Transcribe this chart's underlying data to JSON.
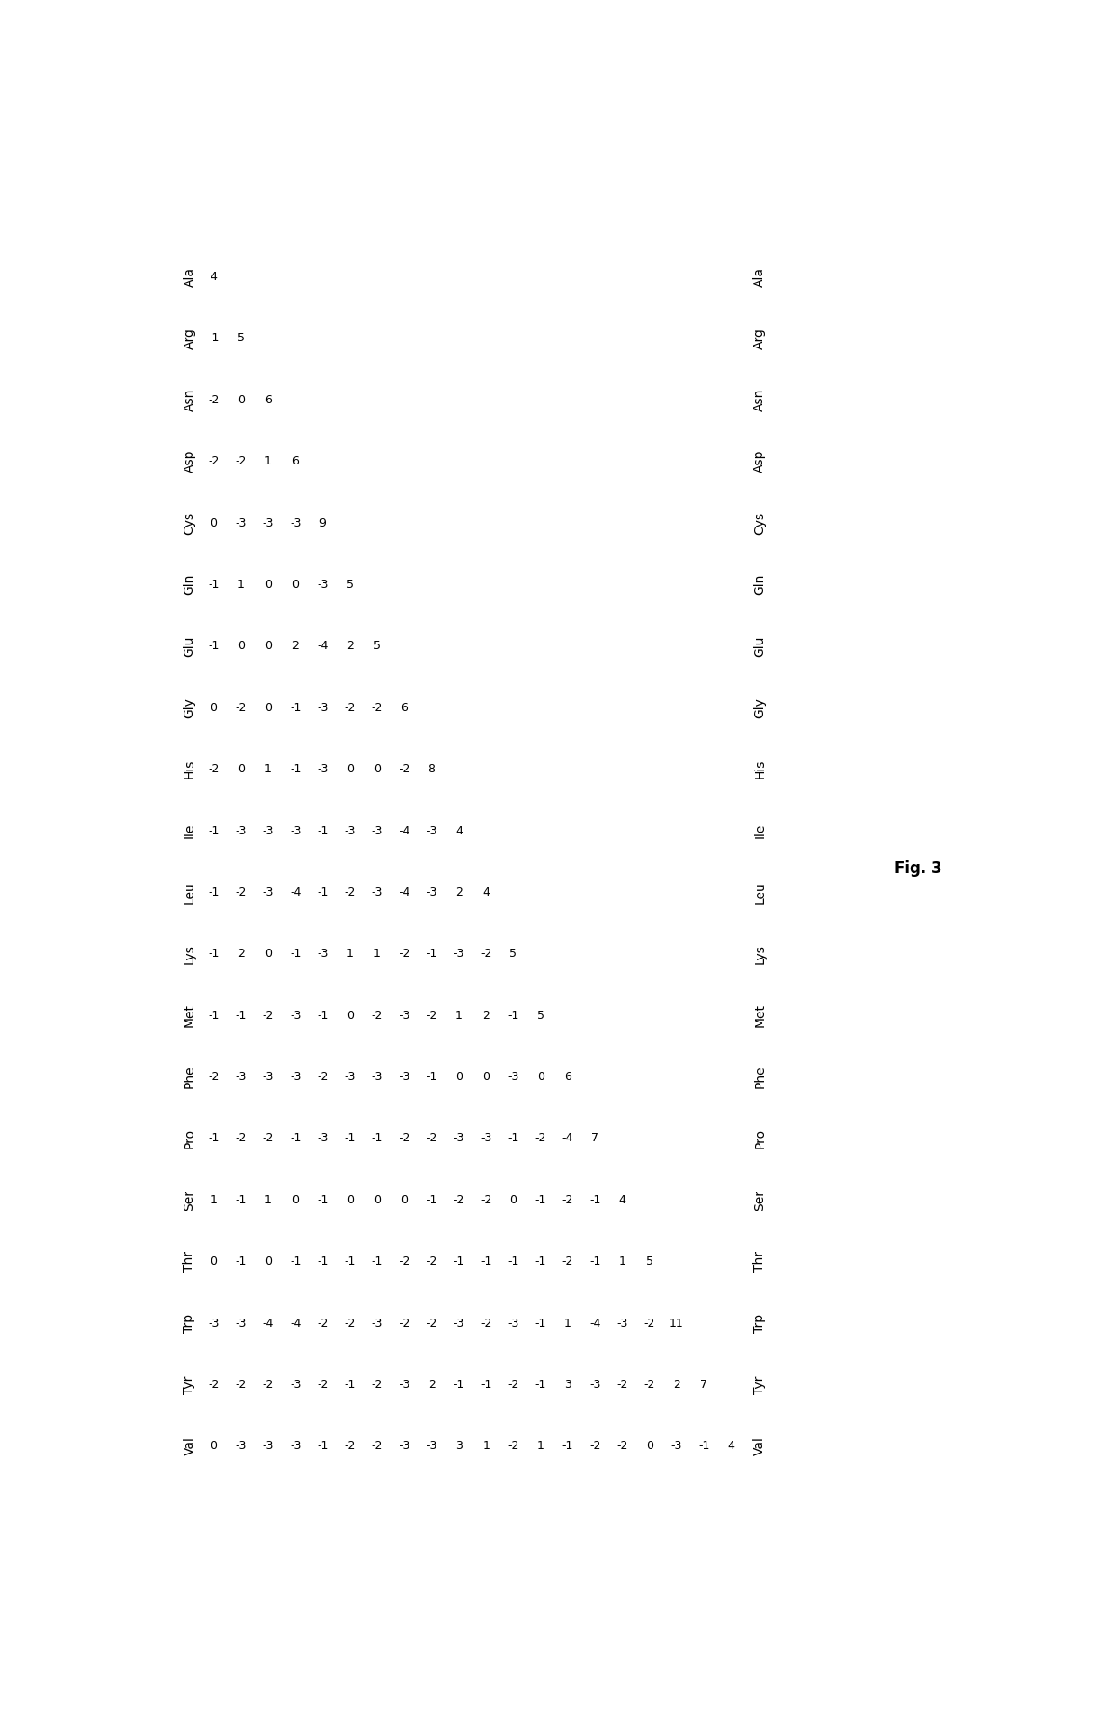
{
  "title": "Fig. 3",
  "amino_acids": [
    "Ala",
    "Arg",
    "Asn",
    "Asp",
    "Cys",
    "Gln",
    "Glu",
    "Gly",
    "His",
    "Ile",
    "Leu",
    "Lys",
    "Met",
    "Phe",
    "Pro",
    "Ser",
    "Thr",
    "Trp",
    "Tyr",
    "Val"
  ],
  "matrix": [
    [
      4,
      null,
      null,
      null,
      null,
      null,
      null,
      null,
      null,
      null,
      null,
      null,
      null,
      null,
      null,
      null,
      null,
      null,
      null,
      null
    ],
    [
      -1,
      5,
      null,
      null,
      null,
      null,
      null,
      null,
      null,
      null,
      null,
      null,
      null,
      null,
      null,
      null,
      null,
      null,
      null,
      null
    ],
    [
      -2,
      0,
      6,
      null,
      null,
      null,
      null,
      null,
      null,
      null,
      null,
      null,
      null,
      null,
      null,
      null,
      null,
      null,
      null,
      null
    ],
    [
      -2,
      -2,
      1,
      6,
      null,
      null,
      null,
      null,
      null,
      null,
      null,
      null,
      null,
      null,
      null,
      null,
      null,
      null,
      null,
      null
    ],
    [
      0,
      -3,
      -3,
      -3,
      9,
      null,
      null,
      null,
      null,
      null,
      null,
      null,
      null,
      null,
      null,
      null,
      null,
      null,
      null,
      null
    ],
    [
      -1,
      1,
      0,
      0,
      -3,
      5,
      null,
      null,
      null,
      null,
      null,
      null,
      null,
      null,
      null,
      null,
      null,
      null,
      null,
      null
    ],
    [
      -1,
      0,
      0,
      2,
      -4,
      2,
      5,
      null,
      null,
      null,
      null,
      null,
      null,
      null,
      null,
      null,
      null,
      null,
      null,
      null
    ],
    [
      0,
      -2,
      0,
      -1,
      -3,
      -2,
      -2,
      6,
      null,
      null,
      null,
      null,
      null,
      null,
      null,
      null,
      null,
      null,
      null,
      null
    ],
    [
      -2,
      0,
      1,
      -1,
      -3,
      0,
      0,
      -2,
      8,
      null,
      null,
      null,
      null,
      null,
      null,
      null,
      null,
      null,
      null,
      null
    ],
    [
      -1,
      -3,
      -3,
      -3,
      -1,
      -3,
      -3,
      -4,
      -3,
      4,
      null,
      null,
      null,
      null,
      null,
      null,
      null,
      null,
      null,
      null
    ],
    [
      -1,
      -2,
      -3,
      -4,
      -1,
      -2,
      -3,
      -4,
      -3,
      2,
      4,
      null,
      null,
      null,
      null,
      null,
      null,
      null,
      null,
      null
    ],
    [
      -1,
      2,
      0,
      -1,
      -3,
      1,
      1,
      -2,
      -1,
      -3,
      -2,
      5,
      null,
      null,
      null,
      null,
      null,
      null,
      null,
      null
    ],
    [
      -1,
      -1,
      -2,
      -3,
      -1,
      0,
      -2,
      -3,
      -2,
      1,
      2,
      -1,
      5,
      null,
      null,
      null,
      null,
      null,
      null,
      null
    ],
    [
      -2,
      -3,
      -3,
      -3,
      -2,
      -3,
      -3,
      -3,
      -1,
      0,
      0,
      -3,
      0,
      6,
      null,
      null,
      null,
      null,
      null,
      null
    ],
    [
      -1,
      -2,
      -2,
      -1,
      -3,
      -1,
      -1,
      -2,
      -2,
      -3,
      -3,
      -1,
      -2,
      -4,
      7,
      null,
      null,
      null,
      null,
      null
    ],
    [
      1,
      -1,
      1,
      0,
      -1,
      0,
      0,
      0,
      -1,
      -2,
      -2,
      0,
      -1,
      -2,
      -1,
      4,
      null,
      null,
      null,
      null
    ],
    [
      0,
      -1,
      0,
      -1,
      -1,
      -1,
      -1,
      -2,
      -2,
      -1,
      -1,
      -1,
      -1,
      -2,
      -1,
      1,
      5,
      null,
      null,
      null
    ],
    [
      -3,
      -3,
      -4,
      -4,
      -2,
      -2,
      -3,
      -2,
      -2,
      -3,
      -2,
      -3,
      -1,
      1,
      -4,
      -3,
      -2,
      11,
      null,
      null
    ],
    [
      -2,
      -2,
      -2,
      -3,
      -2,
      -1,
      -2,
      -3,
      2,
      -1,
      -1,
      -2,
      -1,
      3,
      -3,
      -2,
      -2,
      2,
      7,
      null
    ],
    [
      0,
      -3,
      -3,
      -3,
      -1,
      -2,
      -2,
      -3,
      -3,
      3,
      1,
      -2,
      1,
      -1,
      -2,
      -2,
      0,
      -3,
      -1,
      4
    ]
  ],
  "background_color": "#ffffff",
  "text_color": "#000000",
  "font_size": 9.0,
  "label_font_size": 10.0,
  "fig3_fontsize": 12
}
